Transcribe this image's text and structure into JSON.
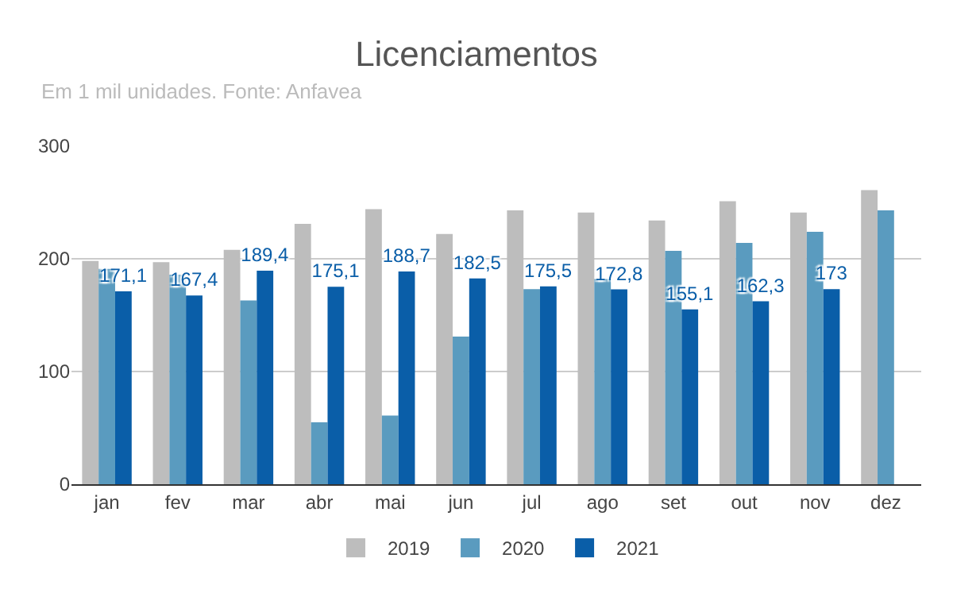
{
  "chart_data": {
    "type": "bar",
    "title": "Licenciamentos",
    "subtitle": "Em 1 mil unidades. Fonte: Anfavea",
    "categories": [
      "jan",
      "fev",
      "mar",
      "abr",
      "mai",
      "jun",
      "jul",
      "ago",
      "set",
      "out",
      "nov",
      "dez"
    ],
    "series": [
      {
        "name": "2019",
        "color": "#bdbdbd",
        "values": [
          198,
          197,
          208,
          231,
          244,
          222,
          243,
          241,
          234,
          251,
          241,
          261
        ]
      },
      {
        "name": "2020",
        "color": "#5a9bbf",
        "values": [
          191,
          186,
          163,
          55,
          61,
          131,
          173,
          182,
          207,
          214,
          224,
          243
        ]
      },
      {
        "name": "2021",
        "color": "#0a5ea8",
        "values": [
          171.1,
          167.4,
          189.4,
          175.1,
          188.7,
          182.5,
          175.5,
          172.8,
          155.1,
          162.3,
          173,
          null
        ],
        "value_labels": [
          "171,1",
          "167,4",
          "189,4",
          "175,1",
          "188,7",
          "182,5",
          "175,5",
          "172,8",
          "155,1",
          "162,3",
          "173",
          null
        ]
      }
    ],
    "ylim": [
      0,
      300
    ],
    "yticks": [
      0,
      100,
      200,
      300
    ],
    "grid": "y",
    "legend": "bottom"
  }
}
